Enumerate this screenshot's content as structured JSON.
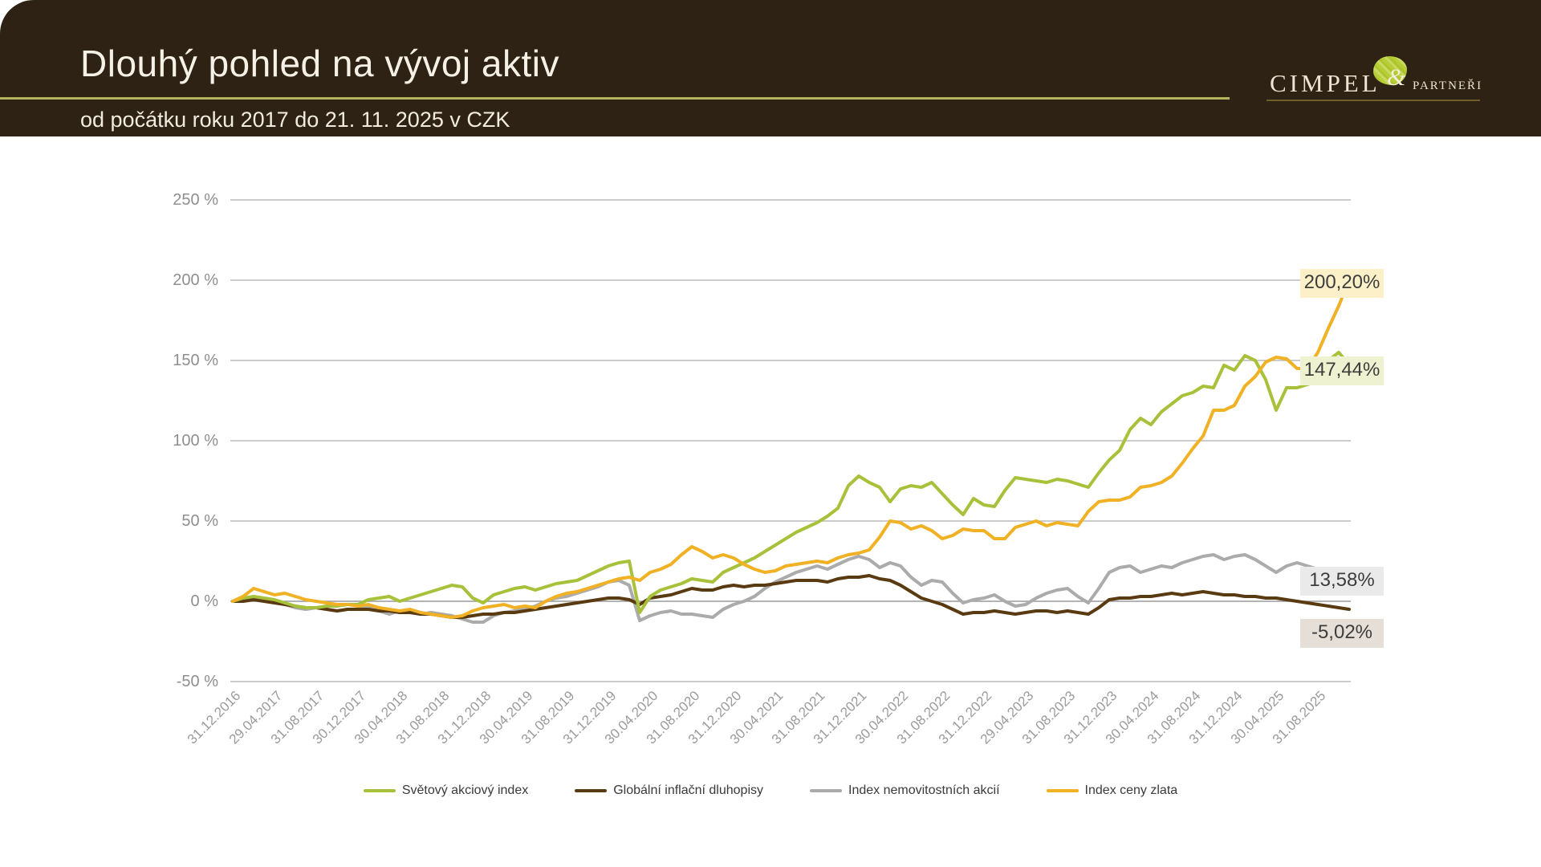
{
  "header": {
    "title": "Dlouhý pohled na vývoj aktiv",
    "subtitle": "od počátku roku 2017 do 21. 11. 2025 v CZK",
    "bg_color": "#2d2214",
    "underline_color": "#b5b45e",
    "logo": {
      "name": "CIMPEL",
      "amp": "&",
      "partners": "PARTNEŘI",
      "blob_color": "#b6cf37",
      "text_color": "#ece4d1",
      "underline_color": "#6e5e2c"
    }
  },
  "chart_data": {
    "type": "line",
    "title": "",
    "xlabel": "",
    "ylabel": "",
    "ylim": [
      -50,
      250
    ],
    "grid": true,
    "legend_position": "bottom",
    "y_axis": {
      "tick_values": [
        250,
        200,
        150,
        100,
        50,
        0,
        -50
      ],
      "tick_labels": [
        "250 %",
        "200 %",
        "150 %",
        "100 %",
        "50 %",
        "0 %",
        "-50 %"
      ]
    },
    "x_axis": {
      "tick_labels": [
        "31.12.2016",
        "29.04.2017",
        "31.08.2017",
        "30.12.2017",
        "30.04.2018",
        "31.08.2018",
        "31.12.2018",
        "30.04.2019",
        "31.08.2019",
        "31.12.2019",
        "30.04.2020",
        "31.08.2020",
        "31.12.2020",
        "30.04.2021",
        "31.08.2021",
        "31.12.2021",
        "30.04.2022",
        "31.08.2022",
        "31.12.2022",
        "29.04.2023",
        "31.08.2023",
        "31.12.2023",
        "30.04.2024",
        "31.08.2024",
        "31.12.2024",
        "30.04.2025",
        "31.08.2025"
      ],
      "months_per_tick": 4,
      "end_date": "21. 11. 2025"
    },
    "series": [
      {
        "name": "Světový akciový index",
        "color": "#a8c13a",
        "end_label": "147,44%",
        "end_label_bg": "#eef2d0",
        "values": [
          0,
          2,
          3,
          2,
          1,
          -1,
          -3,
          -4,
          -4,
          -3,
          -3,
          -2,
          -2,
          1,
          2,
          3,
          0,
          2,
          4,
          6,
          8,
          10,
          9,
          2,
          -1,
          4,
          6,
          8,
          9,
          7,
          9,
          11,
          12,
          13,
          16,
          19,
          22,
          24,
          25,
          -7,
          3,
          7,
          9,
          11,
          14,
          13,
          12,
          18,
          21,
          24,
          27,
          31,
          35,
          39,
          43,
          46,
          49,
          53,
          58,
          72,
          78,
          74,
          71,
          62,
          70,
          72,
          71,
          74,
          67,
          60,
          54,
          64,
          60,
          59,
          69,
          77,
          76,
          75,
          74,
          76,
          75,
          73,
          71,
          80,
          88,
          94,
          107,
          114,
          110,
          118,
          123,
          128,
          130,
          134,
          133,
          147,
          144,
          153,
          150,
          138,
          119,
          133,
          133,
          135,
          137,
          150,
          155,
          147.44
        ]
      },
      {
        "name": "Globální inflační dluhopisy",
        "color": "#5a3a10",
        "end_label": "-5,02%",
        "end_label_bg": "#e5dfd7",
        "values": [
          0,
          0,
          1,
          0,
          -1,
          -2,
          -3,
          -4,
          -4,
          -5,
          -6,
          -5,
          -5,
          -5,
          -6,
          -6,
          -7,
          -7,
          -8,
          -8,
          -9,
          -10,
          -10,
          -9,
          -8,
          -8,
          -7,
          -7,
          -6,
          -5,
          -4,
          -3,
          -2,
          -1,
          0,
          1,
          2,
          2,
          1,
          -2,
          2,
          3,
          4,
          6,
          8,
          7,
          7,
          9,
          10,
          9,
          10,
          10,
          11,
          12,
          13,
          13,
          13,
          12,
          14,
          15,
          15,
          16,
          14,
          13,
          10,
          6,
          2,
          0,
          -2,
          -5,
          -8,
          -7,
          -7,
          -6,
          -7,
          -8,
          -7,
          -6,
          -6,
          -7,
          -6,
          -7,
          -8,
          -4,
          1,
          2,
          2,
          3,
          3,
          4,
          5,
          4,
          5,
          6,
          5,
          4,
          4,
          3,
          3,
          2,
          2,
          1,
          0,
          -1,
          -2,
          -3,
          -4,
          -5.02
        ]
      },
      {
        "name": "Index nemovitostních akcií",
        "color": "#acabac",
        "end_label": "13,58%",
        "end_label_bg": "#eaeaea",
        "values": [
          0,
          1,
          2,
          1,
          0,
          -2,
          -4,
          -5,
          -4,
          -5,
          -6,
          -5,
          -5,
          -4,
          -6,
          -8,
          -6,
          -7,
          -8,
          -7,
          -8,
          -9,
          -11,
          -13,
          -13,
          -9,
          -7,
          -6,
          -5,
          -3,
          0,
          2,
          3,
          5,
          7,
          9,
          12,
          13,
          10,
          -12,
          -9,
          -7,
          -6,
          -8,
          -8,
          -9,
          -10,
          -5,
          -2,
          0,
          3,
          8,
          12,
          15,
          18,
          20,
          22,
          20,
          23,
          26,
          28,
          26,
          21,
          24,
          22,
          15,
          10,
          13,
          12,
          5,
          -1,
          1,
          2,
          4,
          0,
          -3,
          -2,
          2,
          5,
          7,
          8,
          3,
          -1,
          8,
          18,
          21,
          22,
          18,
          20,
          22,
          21,
          24,
          26,
          28,
          29,
          26,
          28,
          29,
          26,
          22,
          18,
          22,
          24,
          22,
          20,
          18,
          15,
          13.58
        ]
      },
      {
        "name": "Index ceny zlata",
        "color": "#f0b125",
        "end_label": "200,20%",
        "end_label_bg": "#fcf0c8",
        "values": [
          0,
          3,
          8,
          6,
          4,
          5,
          3,
          1,
          0,
          -1,
          -2,
          -2,
          -3,
          -2,
          -4,
          -5,
          -6,
          -5,
          -7,
          -8,
          -9,
          -10,
          -9,
          -6,
          -4,
          -3,
          -2,
          -4,
          -3,
          -4,
          0,
          3,
          5,
          6,
          8,
          10,
          12,
          14,
          15,
          13,
          18,
          20,
          23,
          29,
          34,
          31,
          27,
          29,
          27,
          23,
          20,
          18,
          19,
          22,
          23,
          24,
          25,
          24,
          27,
          29,
          30,
          32,
          40,
          50,
          49,
          45,
          47,
          44,
          39,
          41,
          45,
          44,
          44,
          39,
          39,
          46,
          48,
          50,
          47,
          49,
          48,
          47,
          56,
          62,
          63,
          63,
          65,
          71,
          72,
          74,
          78,
          86,
          95,
          103,
          119,
          119,
          122,
          134,
          140,
          149,
          152,
          151,
          145,
          145,
          155,
          170,
          184,
          200.2
        ]
      }
    ]
  }
}
